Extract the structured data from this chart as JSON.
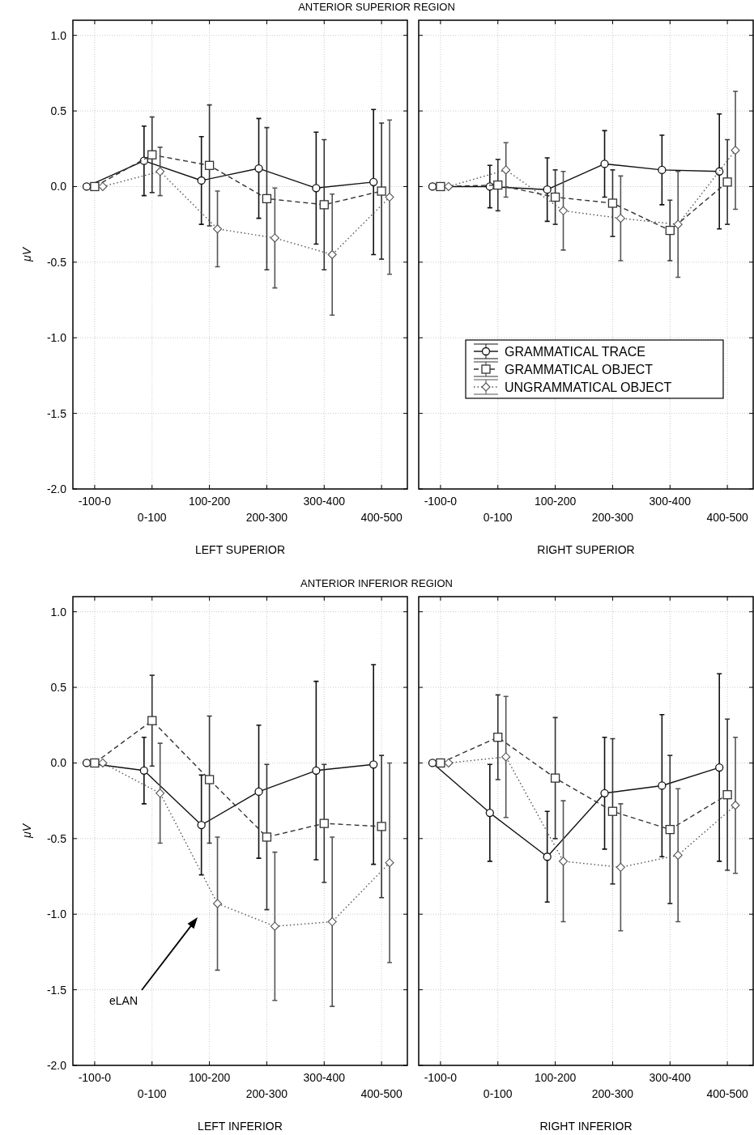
{
  "chart_data": [
    {
      "type": "line",
      "title": "ANTERIOR SUPERIOR REGION",
      "xlabel": "LEFT SUPERIOR",
      "ylabel": "μV",
      "categories": [
        "-100-0",
        "0-100",
        "100-200",
        "200-300",
        "300-400",
        "400-500"
      ],
      "ylim": [
        -2.0,
        1.1
      ],
      "yticks": [
        {
          "value": -2,
          "label": "-2.0"
        },
        {
          "value": -1.5,
          "label": "-1.5"
        },
        {
          "value": -1,
          "label": "-1.0"
        },
        {
          "value": -0.5,
          "label": "-0.5"
        },
        {
          "value": 0,
          "label": "0.0"
        },
        {
          "value": 0.5,
          "label": "0.5"
        },
        {
          "value": 1,
          "label": "1.0"
        }
      ],
      "grid": true,
      "series": [
        {
          "color": "#111111",
          "marker": "circle",
          "line_style": "solid",
          "values": [
            0,
            0.17,
            0.04,
            0.12,
            -0.01,
            0.03
          ],
          "errors": [
            null,
            0.23,
            0.29,
            0.33,
            0.37,
            0.48
          ]
        },
        {
          "color": "#333333",
          "marker": "square",
          "line_style": "dashed",
          "values": [
            0,
            0.21,
            0.14,
            -0.08,
            -0.12,
            -0.03
          ],
          "errors": [
            null,
            0.25,
            0.4,
            0.47,
            0.43,
            0.45
          ]
        },
        {
          "color": "#555555",
          "marker": "diamond",
          "line_style": "dotted",
          "values": [
            0,
            0.1,
            -0.28,
            -0.34,
            -0.45,
            -0.07
          ],
          "errors": [
            null,
            0.16,
            0.25,
            0.33,
            0.4,
            0.51
          ]
        }
      ]
    },
    {
      "type": "line",
      "xlabel": "RIGHT SUPERIOR",
      "tick_labels": "x",
      "legend": "bottom right",
      "categories": [
        "-100-0",
        "0-100",
        "100-200",
        "200-300",
        "300-400",
        "400-500"
      ],
      "ylim": [
        -2.0,
        1.1
      ],
      "yticks": [
        {
          "value": -2,
          "label": null
        },
        {
          "value": -1.5,
          "label": null
        },
        {
          "value": -1,
          "label": null
        },
        {
          "value": -0.5,
          "label": null
        },
        {
          "value": 0,
          "label": null
        },
        {
          "value": 0.5,
          "label": null
        },
        {
          "value": 1,
          "label": null
        }
      ],
      "grid": true,
      "series": [
        {
          "name": "GRAMMATICAL TRACE",
          "color": "#111111",
          "marker": "circle",
          "line_style": "solid",
          "values": [
            0,
            0,
            -0.02,
            0.15,
            0.11,
            0.1
          ],
          "errors": [
            null,
            0.14,
            0.21,
            0.22,
            0.23,
            0.38
          ]
        },
        {
          "name": "GRAMMATICAL OBJECT",
          "color": "#333333",
          "marker": "square",
          "line_style": "dashed",
          "values": [
            0,
            0.01,
            -0.07,
            -0.11,
            -0.29,
            0.03
          ],
          "errors": [
            null,
            0.17,
            0.18,
            0.22,
            0.2,
            0.28
          ]
        },
        {
          "name": "UNGRAMMATICAL OBJECT",
          "color": "#555555",
          "marker": "diamond",
          "line_style": "dotted",
          "values": [
            0,
            0.11,
            -0.16,
            -0.21,
            -0.25,
            0.24
          ],
          "errors": [
            null,
            0.18,
            0.26,
            0.28,
            0.35,
            0.39
          ]
        }
      ]
    },
    {
      "type": "line",
      "title": "ANTERIOR INFERIOR REGION",
      "xlabel": "LEFT INFERIOR",
      "ylabel": "μV",
      "categories": [
        "-100-0",
        "0-100",
        "100-200",
        "200-300",
        "300-400",
        "400-500"
      ],
      "ylim": [
        -2.0,
        1.1
      ],
      "yticks": [
        {
          "value": -2,
          "label": "-2.0"
        },
        {
          "value": -1.5,
          "label": "-1.5"
        },
        {
          "value": -1,
          "label": "-1.0"
        },
        {
          "value": -0.5,
          "label": "-0.5"
        },
        {
          "value": 0,
          "label": "0.0"
        },
        {
          "value": 0.5,
          "label": "0.5"
        },
        {
          "value": 1,
          "label": "1.0"
        }
      ],
      "grid": true,
      "annotations": [
        "eLAN"
      ],
      "series": [
        {
          "color": "#111111",
          "marker": "circle",
          "line_style": "solid",
          "values": [
            0,
            -0.05,
            -0.41,
            -0.19,
            -0.05,
            -0.01
          ],
          "errors": [
            null,
            0.22,
            0.33,
            0.44,
            0.59,
            0.66
          ]
        },
        {
          "color": "#333333",
          "marker": "square",
          "line_style": "dashed",
          "values": [
            0,
            0.28,
            -0.11,
            -0.49,
            -0.4,
            -0.42
          ],
          "errors": [
            null,
            0.3,
            0.42,
            0.48,
            0.39,
            0.47
          ]
        },
        {
          "color": "#555555",
          "marker": "diamond",
          "line_style": "dotted",
          "values": [
            0,
            -0.2,
            -0.93,
            -1.08,
            -1.05,
            -0.66
          ],
          "errors": [
            null,
            0.33,
            0.44,
            0.49,
            0.56,
            0.66
          ]
        }
      ]
    },
    {
      "type": "line",
      "xlabel": "RIGHT INFERIOR",
      "tick_labels": "x",
      "categories": [
        "-100-0",
        "0-100",
        "100-200",
        "200-300",
        "300-400",
        "400-500"
      ],
      "ylim": [
        -2.0,
        1.1
      ],
      "yticks": [
        {
          "value": -2,
          "label": null
        },
        {
          "value": -1.5,
          "label": null
        },
        {
          "value": -1,
          "label": null
        },
        {
          "value": -0.5,
          "label": null
        },
        {
          "value": 0,
          "label": null
        },
        {
          "value": 0.5,
          "label": null
        },
        {
          "value": 1,
          "label": null
        }
      ],
      "grid": true,
      "series": [
        {
          "color": "#111111",
          "marker": "circle",
          "line_style": "solid",
          "values": [
            0,
            -0.33,
            -0.62,
            -0.2,
            -0.15,
            -0.03
          ],
          "errors": [
            null,
            0.32,
            0.3,
            0.37,
            0.47,
            0.62
          ]
        },
        {
          "color": "#333333",
          "marker": "square",
          "line_style": "dashed",
          "values": [
            0,
            0.17,
            -0.1,
            -0.32,
            -0.44,
            -0.21
          ],
          "errors": [
            null,
            0.28,
            0.4,
            0.48,
            0.49,
            0.5
          ]
        },
        {
          "color": "#555555",
          "marker": "diamond",
          "line_style": "dotted",
          "values": [
            0,
            0.04,
            -0.65,
            -0.69,
            -0.61,
            -0.28
          ],
          "errors": [
            null,
            0.4,
            0.4,
            0.42,
            0.44,
            0.45
          ]
        }
      ]
    }
  ]
}
